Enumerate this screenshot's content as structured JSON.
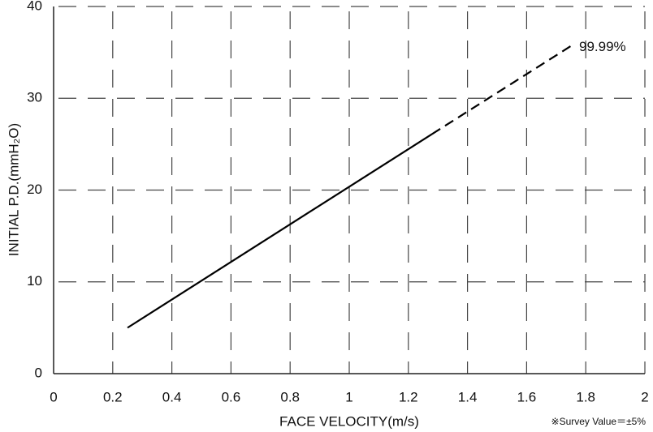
{
  "chart_data": {
    "type": "line",
    "xlabel": "FACE VELOCITY(m/s)",
    "ylabel": "INITIAL P.D.(mmH₂O)",
    "annotations": [
      "99.99%",
      "※Survey Value＝±5%"
    ],
    "series": [
      {
        "x": [
          0.25,
          1.28
        ],
        "values": [
          5,
          26.1
        ],
        "color": "#000000",
        "dashed": false
      },
      {
        "x": [
          1.28,
          1.75
        ],
        "values": [
          26.1,
          35.7
        ],
        "color": "#000000",
        "dashed": true
      }
    ],
    "xlim": [
      0,
      2
    ],
    "xticks": [
      0,
      0.2,
      0.4,
      0.6,
      0.8,
      1,
      1.2,
      1.4,
      1.6,
      1.8,
      2
    ],
    "ylim": [
      0,
      40
    ],
    "yticks": [
      0,
      10,
      20,
      30,
      40
    ],
    "grid": true
  }
}
